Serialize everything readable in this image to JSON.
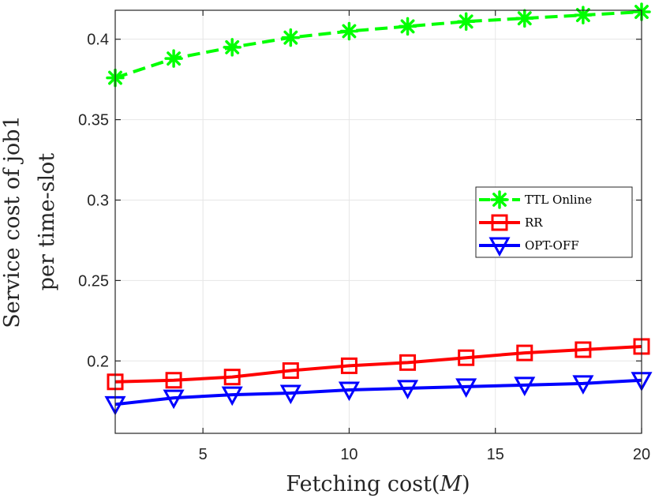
{
  "chart_data": {
    "type": "line",
    "title": "",
    "xlabel": "Fetching cost(M)",
    "xlabel_main": "Fetching cost(",
    "xlabel_var": "M",
    "xlabel_close": ")",
    "ylabel_lines": [
      "Service cost of job1",
      "per time-slot"
    ],
    "xlim": [
      2,
      20
    ],
    "ylim": [
      0.155,
      0.418
    ],
    "xticks": [
      5,
      10,
      15,
      20
    ],
    "yticks": [
      0.2,
      0.25,
      0.3,
      0.35,
      0.4
    ],
    "xtick_labels": [
      "5",
      "10",
      "15",
      "20"
    ],
    "ytick_labels": [
      "0.2",
      "0.25",
      "0.3",
      "0.35",
      "0.4"
    ],
    "grid": true,
    "legend_position": "right-middle",
    "x": [
      2,
      4,
      6,
      8,
      10,
      12,
      14,
      16,
      18,
      20
    ],
    "series": [
      {
        "name": "TTL Online",
        "color": "#00ff00",
        "line": "dashed",
        "marker": "asterisk",
        "values": [
          0.376,
          0.388,
          0.395,
          0.401,
          0.405,
          0.408,
          0.411,
          0.413,
          0.415,
          0.417
        ]
      },
      {
        "name": "RR",
        "color": "#ff0000",
        "line": "solid",
        "marker": "square",
        "values": [
          0.187,
          0.188,
          0.19,
          0.194,
          0.197,
          0.199,
          0.202,
          0.205,
          0.207,
          0.209
        ]
      },
      {
        "name": "OPT-OFF",
        "color": "#0000ff",
        "line": "solid",
        "marker": "triangle-down",
        "values": [
          0.173,
          0.177,
          0.179,
          0.18,
          0.182,
          0.183,
          0.184,
          0.185,
          0.186,
          0.188
        ]
      }
    ]
  }
}
